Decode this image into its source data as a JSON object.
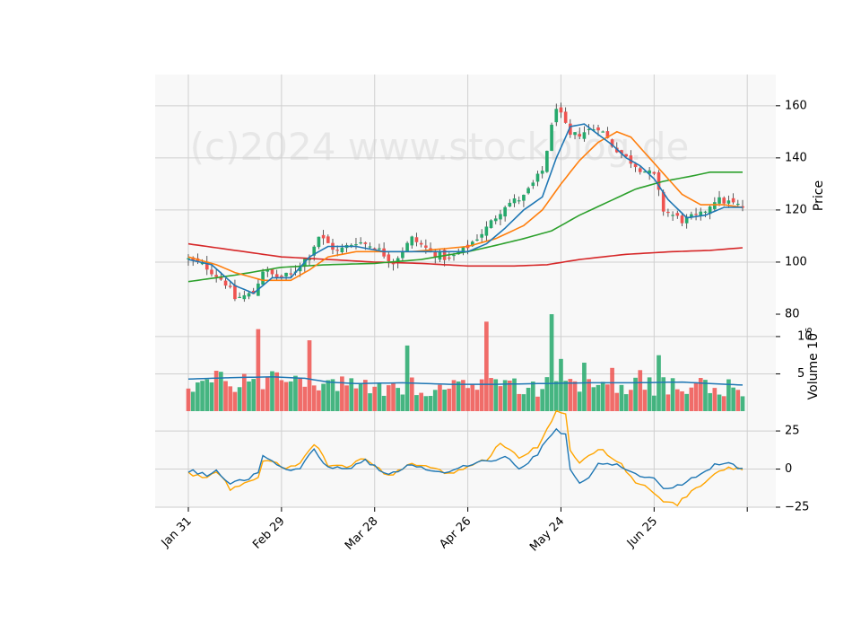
{
  "chart_data": {
    "type": "candlestick",
    "watermark": "(c)2024 www.stockblog.de",
    "x_ticks": [
      "Jan 31",
      "Feb 29",
      "Mar 28",
      "Apr 26",
      "May 24",
      "Jun 25"
    ],
    "x_tick_index": [
      0,
      20,
      40,
      60,
      80,
      100
    ],
    "n_bars": 120,
    "colors": {
      "up": "#26a96c",
      "down": "#ef5350",
      "ma_fast": "#1f77b4",
      "ma_mid": "#ff7f0e",
      "ma_slow": "#2ca02c",
      "ma_long": "#d62728",
      "vol_avg": "#1f77b4",
      "osc_a": "#1f77b4",
      "osc_b": "#ffa500",
      "panel_bg": "#f8f8f8",
      "grid": "#d0d0d0"
    },
    "price_panel": {
      "ylabel": "Price",
      "ylim": [
        80,
        172
      ],
      "y_ticks": [
        80,
        100,
        120,
        140,
        160
      ],
      "close_anchors": [
        [
          0,
          101
        ],
        [
          4,
          98
        ],
        [
          8,
          92
        ],
        [
          10,
          86
        ],
        [
          14,
          88
        ],
        [
          16,
          97
        ],
        [
          19,
          94
        ],
        [
          22,
          95
        ],
        [
          26,
          103
        ],
        [
          28,
          110
        ],
        [
          32,
          104
        ],
        [
          36,
          108
        ],
        [
          40,
          106
        ],
        [
          44,
          100
        ],
        [
          48,
          109
        ],
        [
          52,
          104
        ],
        [
          56,
          101
        ],
        [
          60,
          106
        ],
        [
          64,
          113
        ],
        [
          68,
          122
        ],
        [
          72,
          125
        ],
        [
          76,
          135
        ],
        [
          79,
          160
        ],
        [
          82,
          148
        ],
        [
          85,
          150
        ],
        [
          88,
          152
        ],
        [
          91,
          145
        ],
        [
          94,
          140
        ],
        [
          97,
          136
        ],
        [
          100,
          133
        ],
        [
          102,
          120
        ],
        [
          106,
          116
        ],
        [
          110,
          118
        ],
        [
          113,
          124
        ],
        [
          116,
          123
        ],
        [
          119,
          121
        ]
      ],
      "ma_fast": [
        [
          0,
          101
        ],
        [
          5,
          99
        ],
        [
          10,
          91
        ],
        [
          14,
          88
        ],
        [
          18,
          94
        ],
        [
          22,
          94
        ],
        [
          26,
          102
        ],
        [
          30,
          106
        ],
        [
          36,
          106
        ],
        [
          42,
          104
        ],
        [
          48,
          104
        ],
        [
          54,
          104
        ],
        [
          60,
          104
        ],
        [
          64,
          107
        ],
        [
          68,
          113
        ],
        [
          72,
          120
        ],
        [
          76,
          125
        ],
        [
          79,
          140
        ],
        [
          82,
          152
        ],
        [
          85,
          153
        ],
        [
          88,
          149
        ],
        [
          91,
          145
        ],
        [
          94,
          140
        ],
        [
          97,
          137
        ],
        [
          100,
          132
        ],
        [
          103,
          124
        ],
        [
          107,
          117
        ],
        [
          111,
          118
        ],
        [
          115,
          121
        ],
        [
          119,
          121
        ]
      ],
      "ma_mid": [
        [
          0,
          102
        ],
        [
          6,
          99
        ],
        [
          10,
          96
        ],
        [
          16,
          93
        ],
        [
          22,
          93
        ],
        [
          26,
          97
        ],
        [
          30,
          102
        ],
        [
          36,
          104
        ],
        [
          42,
          104
        ],
        [
          48,
          104
        ],
        [
          54,
          105
        ],
        [
          60,
          106
        ],
        [
          66,
          109
        ],
        [
          72,
          114
        ],
        [
          76,
          120
        ],
        [
          80,
          130
        ],
        [
          84,
          139
        ],
        [
          88,
          146
        ],
        [
          92,
          150
        ],
        [
          95,
          148
        ],
        [
          98,
          142
        ],
        [
          102,
          134
        ],
        [
          106,
          126
        ],
        [
          110,
          122
        ],
        [
          115,
          122
        ],
        [
          119,
          121
        ]
      ],
      "ma_slow": [
        [
          0,
          92.5
        ],
        [
          10,
          95
        ],
        [
          20,
          98
        ],
        [
          30,
          99
        ],
        [
          40,
          99.5
        ],
        [
          50,
          101
        ],
        [
          60,
          104
        ],
        [
          65,
          106
        ],
        [
          72,
          109
        ],
        [
          78,
          112
        ],
        [
          84,
          118
        ],
        [
          90,
          123
        ],
        [
          96,
          128
        ],
        [
          102,
          131
        ],
        [
          108,
          133
        ],
        [
          112,
          134.5
        ],
        [
          119,
          134.5
        ]
      ],
      "ma_long": [
        [
          0,
          107
        ],
        [
          20,
          102
        ],
        [
          40,
          100
        ],
        [
          50,
          99.5
        ],
        [
          60,
          98.5
        ],
        [
          70,
          98.5
        ],
        [
          77,
          99
        ],
        [
          84,
          101
        ],
        [
          94,
          103
        ],
        [
          104,
          104
        ],
        [
          112,
          104.5
        ],
        [
          119,
          105.5
        ]
      ]
    },
    "volume_panel": {
      "ylabel": "Volume  10^6",
      "ylim": [
        0,
        13
      ],
      "y_ticks": [
        5,
        10
      ],
      "spikes": [
        [
          15,
          11
        ],
        [
          19,
          5.2
        ],
        [
          26,
          9.5
        ],
        [
          47,
          8.8
        ],
        [
          64,
          12
        ],
        [
          78,
          13
        ],
        [
          80,
          7
        ],
        [
          85,
          6.5
        ],
        [
          91,
          5.8
        ],
        [
          97,
          5.5
        ],
        [
          101,
          7.5
        ],
        [
          111,
          4.2
        ]
      ],
      "avg": [
        [
          0,
          4.3
        ],
        [
          10,
          4.5
        ],
        [
          18,
          4.6
        ],
        [
          25,
          4.4
        ],
        [
          30,
          3.9
        ],
        [
          36,
          3.7
        ],
        [
          46,
          3.8
        ],
        [
          56,
          3.6
        ],
        [
          66,
          3.6
        ],
        [
          76,
          3.7
        ],
        [
          86,
          3.8
        ],
        [
          96,
          3.8
        ],
        [
          106,
          3.9
        ],
        [
          112,
          3.7
        ],
        [
          119,
          3.5
        ]
      ]
    },
    "osc_panel": {
      "ylim": [
        -25,
        38
      ],
      "y_ticks": [
        -25,
        0,
        25
      ],
      "a": [
        [
          0,
          -1
        ],
        [
          4,
          -4
        ],
        [
          6,
          -1
        ],
        [
          9,
          -10
        ],
        [
          13,
          -6
        ],
        [
          15,
          -3
        ],
        [
          16,
          10
        ],
        [
          19,
          4
        ],
        [
          21,
          -1
        ],
        [
          24,
          0
        ],
        [
          27,
          13
        ],
        [
          30,
          1
        ],
        [
          34,
          0
        ],
        [
          38,
          6
        ],
        [
          43,
          -4
        ],
        [
          48,
          3
        ],
        [
          52,
          -1
        ],
        [
          56,
          -2
        ],
        [
          60,
          3
        ],
        [
          64,
          5
        ],
        [
          68,
          8
        ],
        [
          71,
          0
        ],
        [
          75,
          10
        ],
        [
          79,
          27
        ],
        [
          81,
          22
        ],
        [
          82,
          0
        ],
        [
          84,
          -10
        ],
        [
          86,
          -6
        ],
        [
          88,
          3
        ],
        [
          92,
          3
        ],
        [
          96,
          -3
        ],
        [
          100,
          -7
        ],
        [
          102,
          -13
        ],
        [
          106,
          -10
        ],
        [
          110,
          -3
        ],
        [
          113,
          3
        ],
        [
          116,
          4
        ],
        [
          119,
          0
        ]
      ],
      "b": [
        [
          0,
          -3
        ],
        [
          4,
          -6
        ],
        [
          6,
          -1
        ],
        [
          9,
          -13
        ],
        [
          13,
          -9
        ],
        [
          15,
          -5
        ],
        [
          16,
          6
        ],
        [
          19,
          3
        ],
        [
          21,
          0
        ],
        [
          24,
          4
        ],
        [
          27,
          17
        ],
        [
          30,
          3
        ],
        [
          34,
          1
        ],
        [
          38,
          7
        ],
        [
          43,
          -5
        ],
        [
          48,
          4
        ],
        [
          52,
          0
        ],
        [
          56,
          -3
        ],
        [
          60,
          2
        ],
        [
          64,
          6
        ],
        [
          67,
          18
        ],
        [
          71,
          8
        ],
        [
          75,
          15
        ],
        [
          79,
          38
        ],
        [
          81,
          35
        ],
        [
          82,
          12
        ],
        [
          84,
          4
        ],
        [
          86,
          9
        ],
        [
          88,
          14
        ],
        [
          92,
          6
        ],
        [
          96,
          -8
        ],
        [
          100,
          -15
        ],
        [
          102,
          -22
        ],
        [
          105,
          -23
        ],
        [
          108,
          -15
        ],
        [
          112,
          -6
        ],
        [
          116,
          2
        ],
        [
          119,
          -1
        ]
      ]
    }
  }
}
